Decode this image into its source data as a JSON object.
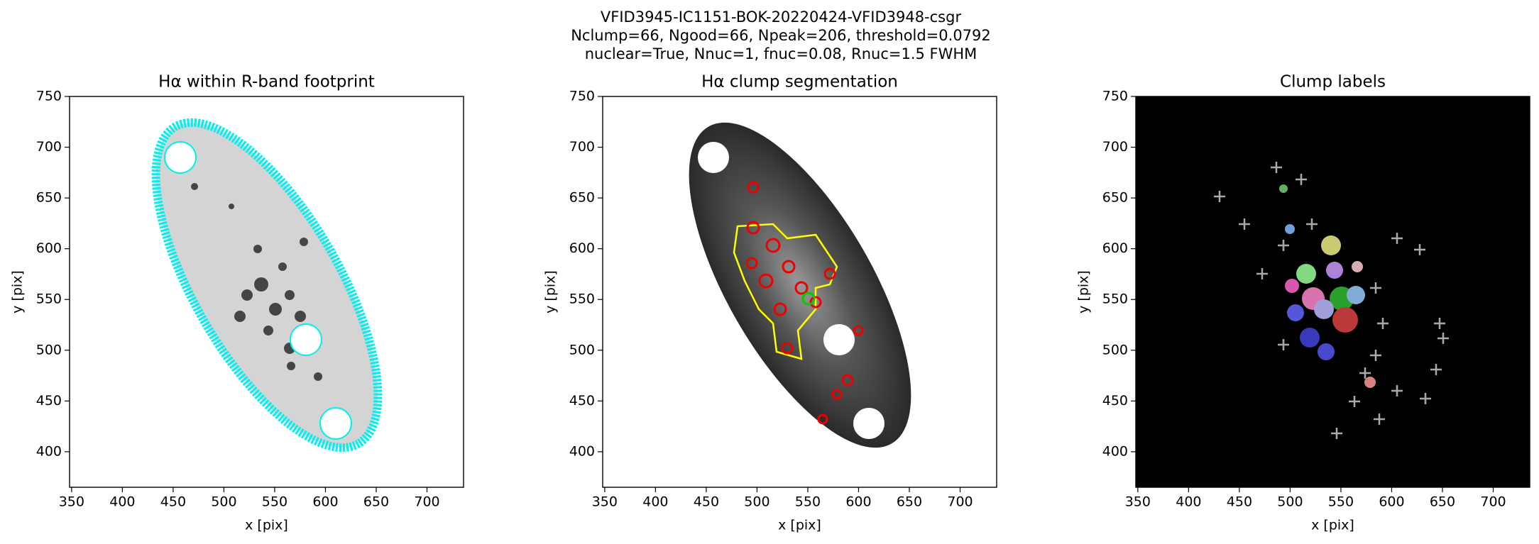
{
  "figure_title": [
    "VFID3945-IC1151-BOK-20220424-VFID3948-csgr",
    "Nclump=66, Ngood=66, Npeak=206, threshold=0.0792",
    "nuclear=True, Nnuc=1, fnuc=0.08, Rnuc=1.5 FWHM"
  ],
  "chart_data": [
    {
      "type": "image",
      "title": "Hα within R-band footprint",
      "x_label": "x [pix]",
      "y_label": "y [pix]",
      "xlim": [
        348,
        736
      ],
      "ylim": [
        365,
        750
      ],
      "xticks": [
        350,
        400,
        450,
        500,
        550,
        600,
        650,
        700
      ],
      "yticks": [
        400,
        450,
        500,
        550,
        600,
        650,
        700,
        750
      ]
    },
    {
      "type": "image",
      "title": "Hα clump segmentation",
      "x_label": "x [pix]",
      "y_label": "y [pix]",
      "xlim": [
        348,
        736
      ],
      "ylim": [
        365,
        750
      ],
      "xticks": [
        350,
        400,
        450,
        500,
        550,
        600,
        650,
        700
      ],
      "yticks": [
        400,
        450,
        500,
        550,
        600,
        650,
        700,
        750
      ]
    },
    {
      "type": "image",
      "title": "Clump labels",
      "x_label": "x [pix]",
      "y_label": "y [pix]",
      "xlim": [
        348,
        736
      ],
      "ylim": [
        365,
        750
      ],
      "xticks": [
        350,
        400,
        450,
        500,
        550,
        600,
        650,
        700
      ],
      "yticks": [
        400,
        450,
        500,
        550,
        600,
        650,
        700,
        750
      ]
    }
  ]
}
